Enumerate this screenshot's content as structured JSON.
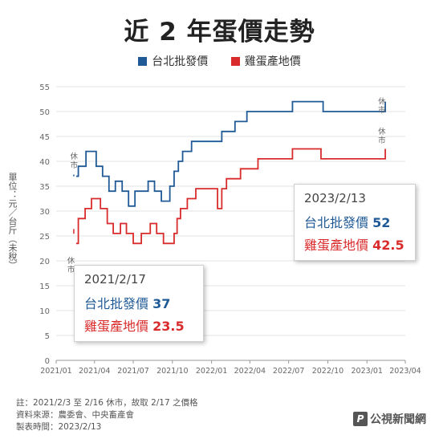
{
  "title": "近 2 年蛋價走勢",
  "ylabel": "單位：元／台斤（未稅）",
  "chart_data": {
    "type": "line",
    "title": "近 2 年蛋價走勢",
    "xlabel": "",
    "ylabel": "單位：元／台斤（未稅）",
    "xlim": [
      "2021-01",
      "2023-04"
    ],
    "ylim": [
      0,
      55
    ],
    "y_ticks": [
      0,
      5,
      10,
      15,
      20,
      25,
      30,
      35,
      40,
      45,
      50,
      55
    ],
    "x_ticks": [
      "2021/01",
      "2021/04",
      "2021/07",
      "2021/10",
      "2022/01",
      "2022/04",
      "2022/07",
      "2022/10",
      "2023/01",
      "2023/04"
    ],
    "grid": "horizontal",
    "legend": "top-center",
    "series": [
      {
        "name": "台北批發價",
        "color": "#1f5a96",
        "points": [
          [
            "2021-02-17",
            37
          ],
          [
            "2021-02-22",
            39
          ],
          [
            "2021-03-12",
            42
          ],
          [
            "2021-04-05",
            39
          ],
          [
            "2021-04-20",
            37
          ],
          [
            "2021-05-05",
            34
          ],
          [
            "2021-05-20",
            36
          ],
          [
            "2021-06-05",
            34
          ],
          [
            "2021-06-20",
            31
          ],
          [
            "2021-07-05",
            34
          ],
          [
            "2021-08-05",
            36
          ],
          [
            "2021-08-20",
            34
          ],
          [
            "2021-09-05",
            32
          ],
          [
            "2021-09-25",
            35
          ],
          [
            "2021-10-05",
            38
          ],
          [
            "2021-10-15",
            40
          ],
          [
            "2021-10-25",
            42
          ],
          [
            "2021-11-15",
            44
          ],
          [
            "2022-01-25",
            46
          ],
          [
            "2022-02-25",
            48
          ],
          [
            "2022-03-25",
            50
          ],
          [
            "2022-07-10",
            52
          ],
          [
            "2022-09-20",
            50
          ],
          [
            "2023-02-13",
            52
          ]
        ],
        "breaks": [
          [
            "2021-11-15",
            44,
            "2022-01-10"
          ],
          [
            "2022-01-18",
            44,
            "2022-01-25"
          ]
        ]
      },
      {
        "name": "雞蛋產地價",
        "color": "#d92b2b",
        "points": [
          [
            "2021-02-17",
            23.5
          ],
          [
            "2021-02-22",
            28.5
          ],
          [
            "2021-03-10",
            30.5
          ],
          [
            "2021-03-25",
            32.5
          ],
          [
            "2021-04-15",
            30.5
          ],
          [
            "2021-05-01",
            27.5
          ],
          [
            "2021-05-15",
            25.5
          ],
          [
            "2021-06-01",
            27.5
          ],
          [
            "2021-06-15",
            25.5
          ],
          [
            "2021-07-01",
            23.5
          ],
          [
            "2021-07-20",
            25.5
          ],
          [
            "2021-08-10",
            27.5
          ],
          [
            "2021-08-25",
            25.5
          ],
          [
            "2021-09-10",
            23.5
          ],
          [
            "2021-10-05",
            25.5
          ],
          [
            "2021-10-12",
            28.5
          ],
          [
            "2021-10-20",
            30.5
          ],
          [
            "2021-11-05",
            32.5
          ],
          [
            "2021-11-25",
            34.5
          ],
          [
            "2022-01-15",
            30.5
          ],
          [
            "2022-01-25",
            34.5
          ],
          [
            "2022-02-05",
            36.5
          ],
          [
            "2022-03-10",
            38.5
          ],
          [
            "2022-04-20",
            40.5
          ],
          [
            "2022-07-10",
            42.5
          ],
          [
            "2022-09-15",
            40.5
          ],
          [
            "2023-02-13",
            42.5
          ]
        ]
      }
    ],
    "annotations": [
      {
        "text": "休市",
        "date": "2021-02-12",
        "value": 40.5
      },
      {
        "text": "休市",
        "date": "2021-02-05",
        "value": 19.5
      },
      {
        "text": "休市",
        "date": "2023-02-05",
        "value": 51.5
      },
      {
        "text": "休市",
        "date": "2023-02-05",
        "value": 45.5
      }
    ]
  },
  "callouts": [
    {
      "date": "2021/2/17",
      "wholesale_label": "台北批發價",
      "wholesale_value": "37",
      "farm_label": "雞蛋產地價",
      "farm_value": "23.5"
    },
    {
      "date": "2023/2/13",
      "wholesale_label": "台北批發價",
      "wholesale_value": "52",
      "farm_label": "雞蛋產地價",
      "farm_value": "42.5"
    }
  ],
  "footer": {
    "note": "註：2021/2/3 至 2/16 休市，故取 2/17 之價格",
    "source": "資料來源：農委會、中央畜產會",
    "made": "製表時間：2023/2/13"
  },
  "logo": "公視新聞網"
}
